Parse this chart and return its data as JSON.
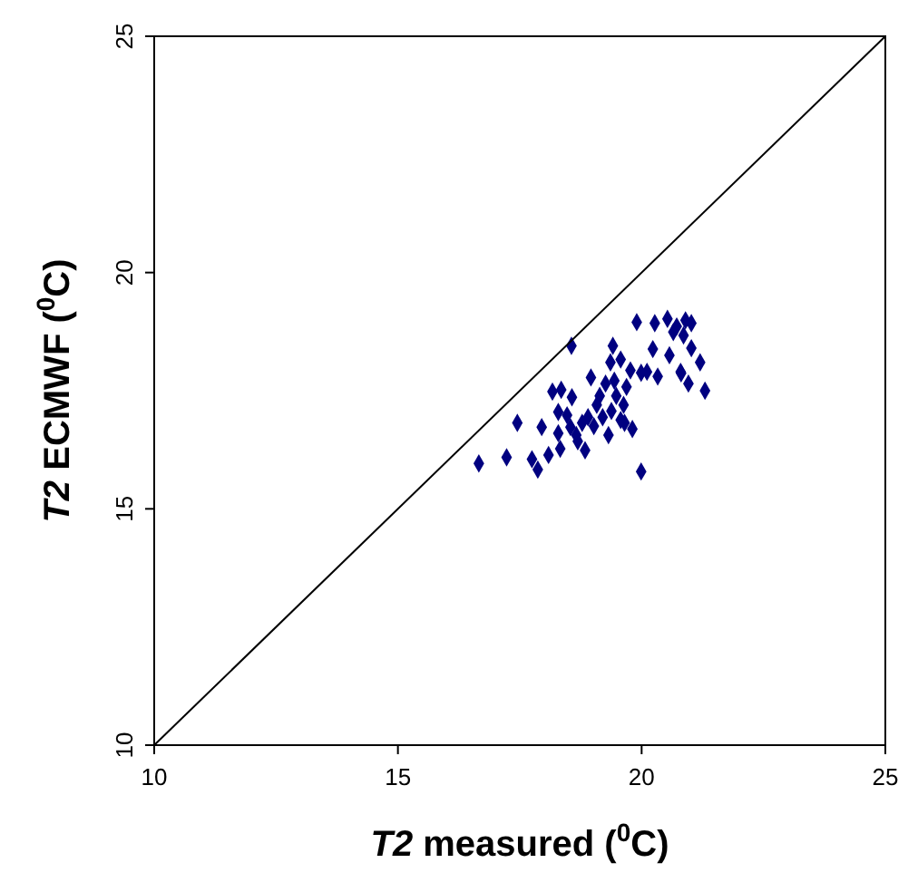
{
  "chart_data": {
    "type": "scatter",
    "xlabel": "T2 measured ($^{0}$C)",
    "ylabel": "T2 ECMWF ($^{0}$C)",
    "xlim": [
      10,
      25
    ],
    "ylim": [
      10,
      25
    ],
    "xticks": [
      10,
      15,
      20,
      25
    ],
    "yticks": [
      10,
      15,
      20,
      25
    ],
    "grid": false,
    "marker": "diamond",
    "series": [
      {
        "color": "#000080",
        "x": [
          16.66,
          17.23,
          17.45,
          17.75,
          17.87,
          17.95,
          18.09,
          18.29,
          18.33,
          18.17,
          18.35,
          18.56,
          18.57,
          18.29,
          18.47,
          18.54,
          18.66,
          18.69,
          18.84,
          18.78,
          18.9,
          18.96,
          19.02,
          19.08,
          19.14,
          19.2,
          19.26,
          19.32,
          19.38,
          19.41,
          19.44,
          19.48,
          19.57,
          19.57,
          19.63,
          19.69,
          19.36,
          19.81,
          19.65,
          19.99,
          19.77,
          19.99,
          20.11,
          20.33,
          19.9,
          20.23,
          20.27,
          20.53,
          20.57,
          20.65,
          20.72,
          20.81,
          20.86,
          20.9,
          21.02,
          21.02,
          20.96,
          21.3,
          21.2,
          20.8
        ],
        "values": [
          15.96,
          16.09,
          16.82,
          16.05,
          15.83,
          16.73,
          16.14,
          16.6,
          16.27,
          17.48,
          17.52,
          18.45,
          17.36,
          17.05,
          16.98,
          16.73,
          16.56,
          16.43,
          16.24,
          16.82,
          16.94,
          17.78,
          16.75,
          17.2,
          17.39,
          16.94,
          17.65,
          16.56,
          17.07,
          18.45,
          17.71,
          17.39,
          18.16,
          16.88,
          17.2,
          17.58,
          18.1,
          16.69,
          16.82,
          15.79,
          17.93,
          17.88,
          17.9,
          17.8,
          18.95,
          18.38,
          18.93,
          19.02,
          18.25,
          18.74,
          18.86,
          17.87,
          18.67,
          18.99,
          18.93,
          18.4,
          17.65,
          17.5,
          18.1,
          17.9
        ]
      },
      {
        "type": "line",
        "color": "#000000",
        "marker": "none",
        "x": [
          10,
          25
        ],
        "values": [
          10,
          25
        ]
      }
    ]
  }
}
